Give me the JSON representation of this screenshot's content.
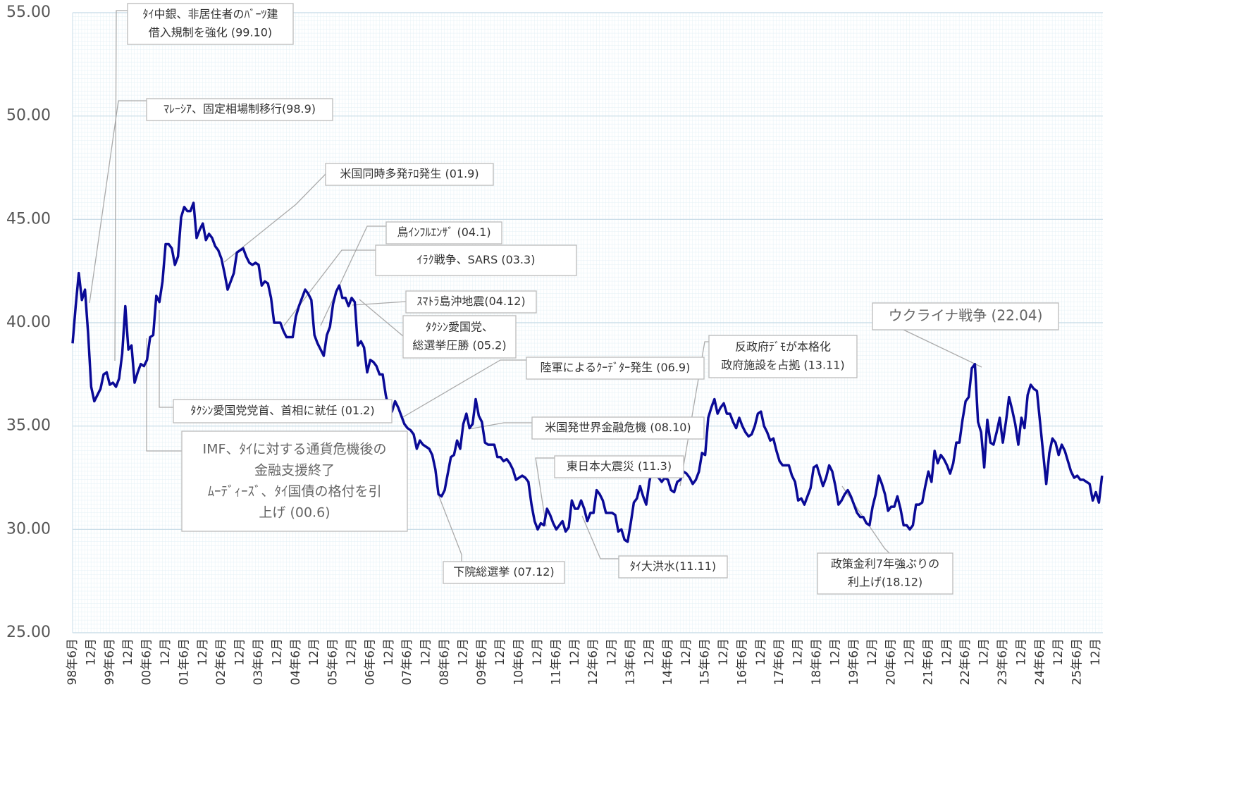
{
  "chart_data": {
    "type": "line",
    "color": "#0a0a96",
    "ylim": [
      25,
      55
    ],
    "yticks": [
      {
        "value": 25,
        "label": "25.00"
      },
      {
        "value": 30,
        "label": "30.00"
      },
      {
        "value": 35,
        "label": "35.00"
      },
      {
        "value": 40,
        "label": "40.00"
      },
      {
        "value": 45,
        "label": "45.00"
      },
      {
        "value": 50,
        "label": "50.00"
      },
      {
        "value": 55,
        "label": "55.00"
      }
    ],
    "grid": true,
    "categories": [
      "98年6月",
      null,
      null,
      null,
      null,
      null,
      "12月",
      null,
      null,
      null,
      null,
      null,
      "99年6月",
      null,
      null,
      null,
      null,
      null,
      "12月",
      null,
      null,
      null,
      null,
      null,
      "00年6月",
      null,
      null,
      null,
      null,
      null,
      "12月",
      null,
      null,
      null,
      null,
      null,
      "01年6月",
      null,
      null,
      null,
      null,
      null,
      "12月",
      null,
      null,
      null,
      null,
      null,
      "02年6月",
      null,
      null,
      null,
      null,
      null,
      "12月",
      null,
      null,
      null,
      null,
      null,
      "03年6月",
      null,
      null,
      null,
      null,
      null,
      "12月",
      null,
      null,
      null,
      null,
      null,
      "04年6月",
      null,
      null,
      null,
      null,
      null,
      "12月",
      null,
      null,
      null,
      null,
      null,
      "05年6月",
      null,
      null,
      null,
      null,
      null,
      "12月",
      null,
      null,
      null,
      null,
      null,
      "06年6月",
      null,
      null,
      null,
      null,
      null,
      "12月",
      null,
      null,
      null,
      null,
      null,
      "07年6月",
      null,
      null,
      null,
      null,
      null,
      "12月",
      null,
      null,
      null,
      null,
      null,
      "08年6月",
      null,
      null,
      null,
      null,
      null,
      "12月",
      null,
      null,
      null,
      null,
      null,
      "09年6月",
      null,
      null,
      null,
      null,
      null,
      "12月",
      null,
      null,
      null,
      null,
      null,
      "10年6月",
      null,
      null,
      null,
      null,
      null,
      "12月",
      null,
      null,
      null,
      null,
      null,
      "11年6月",
      null,
      null,
      null,
      null,
      null,
      "12月",
      null,
      null,
      null,
      null,
      null,
      "12年6月",
      null,
      null,
      null,
      null,
      null,
      "12月",
      null,
      null,
      null,
      null,
      null,
      "13年6月",
      null,
      null,
      null,
      null,
      null,
      "12月",
      null,
      null,
      null,
      null,
      null,
      "14年6月",
      null,
      null,
      null,
      null,
      null,
      "12月",
      null,
      null,
      null,
      null,
      null,
      "15年6月",
      null,
      null,
      null,
      null,
      null,
      "12月",
      null,
      null,
      null,
      null,
      null,
      "16年6月",
      null,
      null,
      null,
      null,
      null,
      "12月",
      null,
      null,
      null,
      null,
      null,
      "17年6月",
      null,
      null,
      null,
      null,
      null,
      "12月",
      null,
      null,
      null,
      null,
      null,
      "18年6月",
      null,
      null,
      null,
      null,
      null,
      "12月",
      null,
      null,
      null,
      null,
      null,
      "19年6月",
      null,
      null,
      null,
      null,
      null,
      "12月",
      null,
      null,
      null,
      null,
      null,
      "20年6月",
      null,
      null,
      null,
      null,
      null,
      "12月",
      null,
      null,
      null,
      null,
      null,
      "21年6月",
      null,
      null,
      null,
      null,
      null,
      "12月",
      null,
      null,
      null,
      null,
      null,
      "22年6月",
      null,
      null,
      null,
      null,
      null,
      "12月",
      null,
      null,
      null,
      null,
      null,
      "23年6月",
      null,
      null,
      null,
      null,
      null,
      "12月",
      null,
      null,
      null,
      null,
      null,
      "24年6月",
      null,
      null,
      null,
      null,
      null,
      "12月",
      null,
      null,
      null,
      null,
      null,
      "25年6月",
      null,
      null,
      null,
      null,
      null,
      "12月",
      null,
      null
    ],
    "values": [
      39.0,
      40.8,
      42.4,
      41.1,
      41.6,
      39.5,
      36.9,
      36.2,
      36.5,
      36.8,
      37.5,
      37.6,
      37.0,
      37.1,
      36.9,
      37.3,
      38.5,
      40.8,
      38.7,
      38.9,
      37.1,
      37.6,
      38.0,
      37.9,
      38.2,
      39.3,
      39.4,
      41.3,
      41.0,
      42.0,
      43.8,
      43.8,
      43.6,
      42.8,
      43.2,
      45.1,
      45.6,
      45.4,
      45.4,
      45.8,
      44.1,
      44.5,
      44.8,
      44.0,
      44.3,
      44.1,
      43.7,
      43.5,
      43.1,
      42.4,
      41.6,
      42.0,
      42.4,
      43.4,
      43.5,
      43.6,
      43.2,
      42.9,
      42.8,
      42.9,
      42.8,
      41.8,
      42.0,
      41.9,
      41.2,
      40.0,
      40.0,
      40.0,
      39.6,
      39.3,
      39.3,
      39.3,
      40.3,
      40.8,
      41.2,
      41.6,
      41.4,
      41.1,
      39.4,
      39.0,
      38.7,
      38.4,
      39.4,
      39.8,
      40.9,
      41.5,
      41.8,
      41.2,
      41.2,
      40.8,
      41.2,
      41.0,
      38.9,
      39.1,
      38.8,
      37.6,
      38.2,
      38.1,
      37.9,
      37.5,
      37.5,
      36.5,
      35.8,
      35.7,
      36.2,
      35.9,
      35.5,
      35.1,
      34.9,
      34.8,
      34.6,
      33.9,
      34.3,
      34.1,
      34.0,
      33.9,
      33.6,
      32.9,
      31.7,
      31.6,
      31.9,
      32.7,
      33.5,
      33.6,
      34.3,
      33.9,
      35.1,
      35.6,
      34.9,
      35.1,
      36.3,
      35.5,
      35.2,
      34.2,
      34.1,
      34.1,
      34.1,
      33.5,
      33.5,
      33.3,
      33.4,
      33.2,
      32.9,
      32.4,
      32.5,
      32.6,
      32.5,
      32.3,
      31.2,
      30.4,
      30.0,
      30.3,
      30.2,
      31.0,
      30.7,
      30.3,
      30.0,
      30.2,
      30.4,
      29.9,
      30.1,
      31.4,
      31.0,
      31.0,
      31.4,
      31.0,
      30.4,
      30.8,
      30.8,
      31.9,
      31.7,
      31.4,
      30.8,
      30.8,
      30.8,
      30.7,
      29.9,
      30.0,
      29.5,
      29.4,
      30.3,
      31.3,
      31.5,
      32.1,
      31.6,
      31.2,
      32.3,
      33.0,
      32.6,
      32.5,
      32.3,
      32.5,
      32.4,
      31.9,
      31.8,
      32.3,
      32.4,
      32.8,
      32.7,
      32.5,
      32.2,
      32.4,
      32.8,
      33.7,
      33.6,
      35.4,
      35.9,
      36.3,
      35.6,
      35.9,
      36.1,
      35.6,
      35.6,
      35.2,
      34.9,
      35.4,
      35.0,
      34.7,
      34.5,
      34.6,
      35.0,
      35.6,
      35.7,
      35.0,
      34.7,
      34.3,
      34.4,
      33.8,
      33.3,
      33.1,
      33.1,
      33.1,
      32.6,
      32.3,
      31.4,
      31.5,
      31.2,
      31.6,
      32.0,
      33.0,
      33.1,
      32.6,
      32.1,
      32.5,
      33.1,
      32.8,
      32.1,
      31.2,
      31.4,
      31.7,
      31.9,
      31.6,
      31.2,
      30.8,
      30.6,
      30.6,
      30.3,
      30.2,
      31.1,
      31.7,
      32.6,
      32.2,
      31.7,
      30.9,
      31.1,
      31.1,
      31.6,
      31.0,
      30.2,
      30.2,
      30.0,
      30.2,
      31.2,
      31.2,
      31.3,
      32.1,
      32.8,
      32.3,
      33.8,
      33.2,
      33.6,
      33.4,
      33.1,
      32.7,
      33.2,
      34.2,
      34.2,
      35.3,
      36.2,
      36.4,
      37.8,
      38.0,
      35.2,
      34.7,
      33.0,
      35.3,
      34.2,
      34.1,
      34.7,
      35.4,
      34.2,
      35.2,
      36.4,
      35.8,
      35.1,
      34.1,
      35.4,
      34.9,
      36.5,
      37.0,
      36.8,
      36.7,
      35.2,
      33.7,
      32.2,
      33.7,
      34.4,
      34.2,
      33.6,
      34.1,
      33.8,
      33.3,
      32.8,
      32.5,
      32.6,
      32.4,
      32.4,
      32.3,
      32.2,
      31.4,
      31.8,
      31.3,
      32.6
    ],
    "annotations": [
      {
        "text": [
          "ﾀｲ中銀、非居住者のﾊﾞｰﾂ建",
          "借入規制を強化 (99.10)"
        ]
      },
      {
        "text": [
          "ﾏﾚｰｼｱ、固定相場制移行(98.9)"
        ]
      },
      {
        "text": [
          "米国同時多発ﾃﾛ発生 (01.9)"
        ]
      },
      {
        "text": [
          "鳥ｲﾝﾌﾙｴﾝｻﾞ (04.1)"
        ]
      },
      {
        "text": [
          "ｲﾗｸ戦争、SARS (03.3)"
        ]
      },
      {
        "text": [
          "ｽﾏﾄﾗ島沖地震(04.12)"
        ]
      },
      {
        "text": [
          "ﾀｸｼﾝ愛国党、",
          "総選挙圧勝 (05.2)"
        ]
      },
      {
        "text": [
          "陸軍によるｸｰﾃﾞﾀｰ発生 (06.9)"
        ]
      },
      {
        "text": [
          "ﾀｸｼﾝ愛国党党首、首相に就任 (01.2)"
        ]
      },
      {
        "text": [
          "IMF、ﾀｲに対する通貨危機後の",
          "金融支援終了",
          "ﾑｰﾃﾞｨｰｽﾞ、ﾀｲ国債の格付を引",
          "上げ (00.6)"
        ]
      },
      {
        "text": [
          "米国発世界金融危機 (08.10)"
        ]
      },
      {
        "text": [
          "東日本大震災 (11.3)"
        ]
      },
      {
        "text": [
          "下院総選挙 (07.12)"
        ]
      },
      {
        "text": [
          "ﾀｲ大洪水(11.11)"
        ]
      },
      {
        "text": [
          "反政府ﾃﾞﾓが本格化",
          "政府施設を占拠 (13.11)"
        ]
      },
      {
        "text": [
          "ウクライナ戦争 (22.04)"
        ]
      },
      {
        "text": [
          "政策金利7年強ぶりの",
          "利上げ(18.12)"
        ]
      }
    ]
  }
}
